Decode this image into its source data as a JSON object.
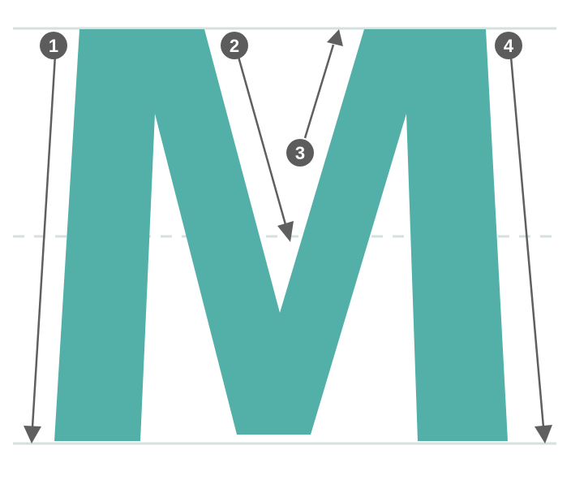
{
  "letter": {
    "character": "M",
    "fill_color": "#52b0a8"
  },
  "guides": {
    "color": "#d5e1df",
    "lines": [
      "cap-height",
      "x-height-midline",
      "baseline"
    ]
  },
  "strokes": [
    {
      "number": "1",
      "direction": "down"
    },
    {
      "number": "2",
      "direction": "down"
    },
    {
      "number": "3",
      "direction": "up"
    },
    {
      "number": "4",
      "direction": "down"
    }
  ],
  "badge_color": "#5c5c5c",
  "arrow_color": "#5f5f5f"
}
